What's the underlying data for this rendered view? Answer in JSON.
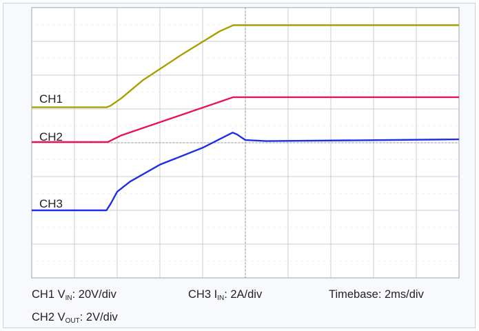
{
  "chart_data": {
    "type": "line",
    "title": "",
    "xlabel": "",
    "ylabel": "",
    "grid": true,
    "x_unit": "div",
    "y_unit": "div",
    "xlim": [
      0,
      10
    ],
    "ylim": [
      0,
      8
    ],
    "trigger_marker_x": 3,
    "channels": [
      {
        "name": "CH1",
        "color": "#a8a000",
        "scale_text": {
          "prefix": "CH1 V",
          "sub": "IN",
          "suffix": ": 20V/div"
        },
        "points": [
          [
            0,
            5.05
          ],
          [
            1.75,
            5.05
          ],
          [
            1.85,
            5.1
          ],
          [
            2.1,
            5.32
          ],
          [
            2.6,
            5.85
          ],
          [
            3.5,
            6.6
          ],
          [
            4.4,
            7.3
          ],
          [
            4.72,
            7.48
          ],
          [
            10,
            7.48
          ]
        ]
      },
      {
        "name": "CH2",
        "color": "#e8125c",
        "scale_text": {
          "prefix": "CH2 V",
          "sub": "OUT",
          "suffix": ": 2V/div"
        },
        "points": [
          [
            0,
            4.02
          ],
          [
            1.78,
            4.02
          ],
          [
            2.1,
            4.22
          ],
          [
            4.72,
            5.35
          ],
          [
            10,
            5.35
          ]
        ]
      },
      {
        "name": "CH3",
        "color": "#1e2ee8",
        "scale_text": {
          "prefix": "CH3 I",
          "sub": "IN",
          "suffix": ": 2A/div"
        },
        "points": [
          [
            0,
            2.0
          ],
          [
            1.75,
            2.0
          ],
          [
            1.85,
            2.2
          ],
          [
            2.0,
            2.55
          ],
          [
            2.3,
            2.85
          ],
          [
            3.0,
            3.35
          ],
          [
            4.0,
            3.85
          ],
          [
            4.7,
            4.3
          ],
          [
            4.8,
            4.25
          ],
          [
            5.0,
            4.08
          ],
          [
            5.5,
            4.05
          ],
          [
            10,
            4.1
          ]
        ]
      }
    ]
  },
  "timebase": "Timebase: 2ms/div"
}
